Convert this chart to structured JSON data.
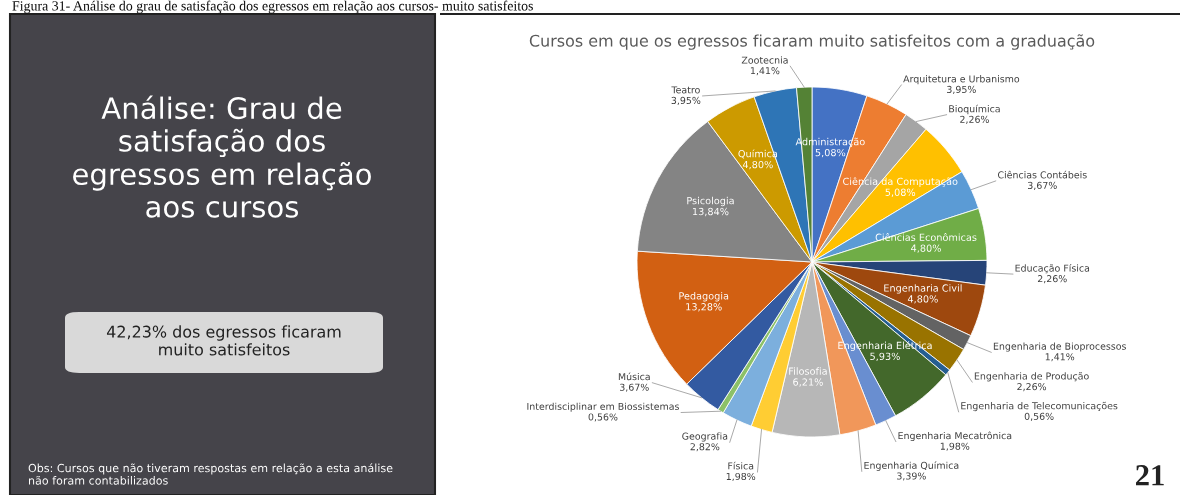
{
  "chart_data": {
    "type": "pie",
    "title": "Cursos em que os egressos ficaram muito satisfeitos com a graduação",
    "categories": [
      "Administração",
      "Arquitetura e Urbanismo",
      "Bioquímica",
      "Ciência da Computação",
      "Ciências Contábeis",
      "Ciências Econômicas",
      "Educação Física",
      "Engenharia Civil",
      "Engenharia de Bioprocessos",
      "Engenharia de Produção",
      "Engenharia de Telecomunicações",
      "Engenharia Elétrica",
      "Engenharia Mecatrônica",
      "Engenharia Química",
      "Filosofia",
      "Física",
      "Geografia",
      "Interdisciplinar em Biossistemas",
      "Música",
      "Pedagogia",
      "Psicologia",
      "Química",
      "Teatro",
      "Zootecnia"
    ],
    "values": [
      5.08,
      3.95,
      2.26,
      5.08,
      3.67,
      4.8,
      2.26,
      4.8,
      1.41,
      2.26,
      0.56,
      5.93,
      1.98,
      3.39,
      6.21,
      1.98,
      2.82,
      0.56,
      3.67,
      13.28,
      13.84,
      4.8,
      3.95,
      1.41
    ],
    "value_labels": [
      "5,08%",
      "3,95%",
      "2,26%",
      "5,08%",
      "3,67%",
      "4,80%",
      "2,26%",
      "4,80%",
      "1,41%",
      "2,26%",
      "0,56%",
      "5,93%",
      "1,98%",
      "3,39%",
      "6,21%",
      "1,98%",
      "2,82%",
      "0,56%",
      "3,67%",
      "13,28%",
      "13,84%",
      "4,80%",
      "3,95%",
      "1,41%"
    ],
    "colors": [
      "#4472c4",
      "#ed7d31",
      "#a5a5a5",
      "#ffc000",
      "#5b9bd5",
      "#70ad47",
      "#264478",
      "#9e480e",
      "#636363",
      "#997300",
      "#255e91",
      "#43682b",
      "#698ed0",
      "#f1975a",
      "#b7b7b7",
      "#ffcd33",
      "#7cafdd",
      "#8cc168",
      "#335aa1",
      "#d26012",
      "#848484",
      "#cc9a00",
      "#2e75b6",
      "#548235"
    ],
    "annotations": [
      "Figura 31- Análise do grau de satisfação dos egressos em relação aos cursos- muito satisfeitos",
      "Análise: Grau de satisfação dos egressos em relação aos cursos",
      "42,23% dos egressos ficaram muito satisfeitos",
      "Obs: Cursos que não tiveram respostas em relação a esta análise não foram contabilizados",
      "21"
    ]
  }
}
